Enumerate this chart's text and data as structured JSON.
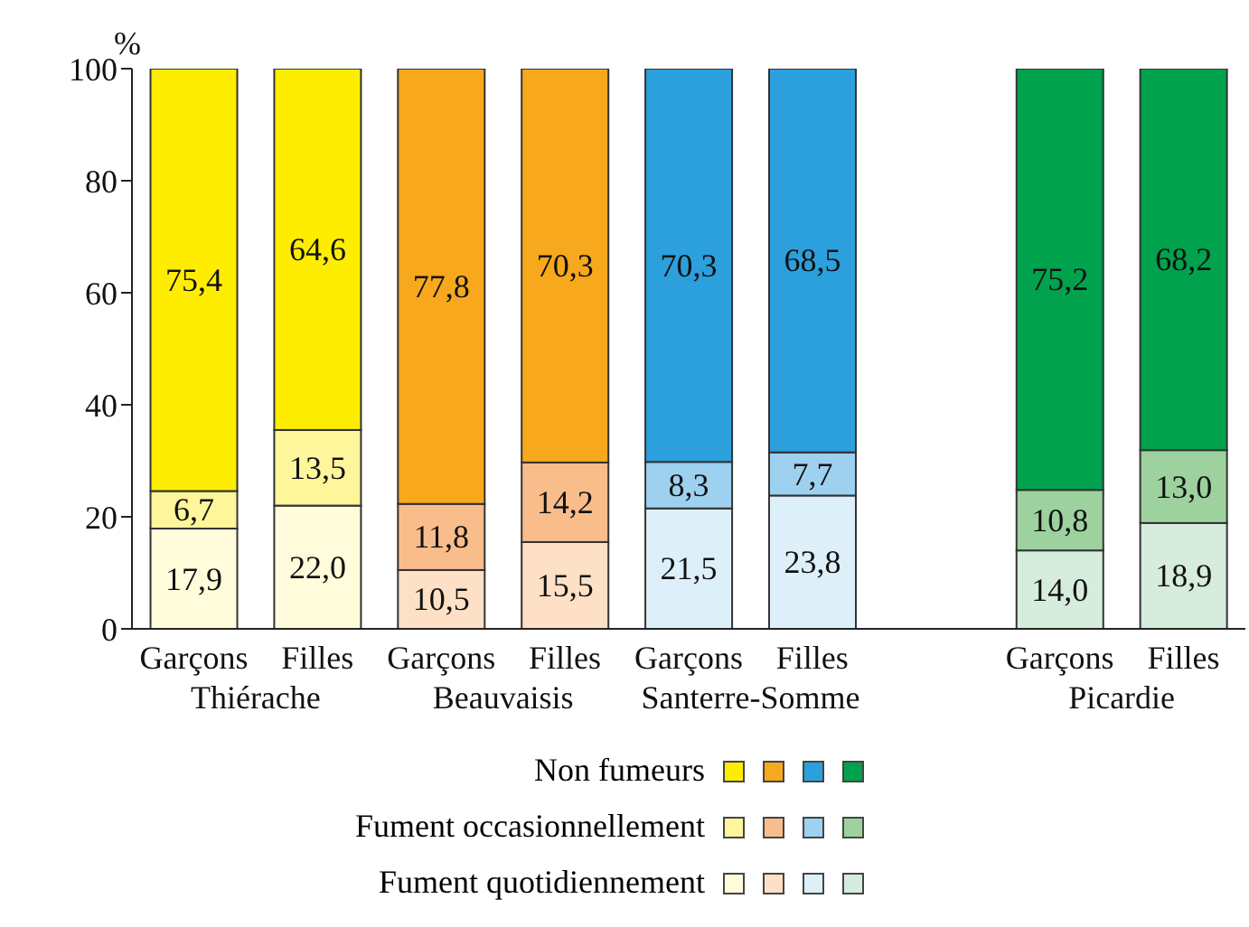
{
  "chart_data": {
    "type": "bar",
    "stacked": true,
    "ylabel": "%",
    "ylim": [
      0,
      100
    ],
    "yticks": [
      0,
      20,
      40,
      60,
      80,
      100
    ],
    "legend": "bottom",
    "categories": [
      "Garçons",
      "Filles",
      "Garçons",
      "Filles",
      "Garçons",
      "Filles",
      null,
      "Garçons",
      "Filles"
    ],
    "annotations": [
      "Thiérache",
      "Beauvaisis",
      "Santerre-Somme",
      "Picardie"
    ],
    "series": [
      {
        "name": "Fument quotidiennement",
        "values": [
          17.9,
          22.0,
          10.5,
          15.5,
          21.5,
          23.8,
          null,
          14.0,
          18.9
        ],
        "value_labels": [
          "17,9",
          "22,0",
          "10,5",
          "15,5",
          "21,5",
          "23,8",
          null,
          "14,0",
          "18,9"
        ],
        "colors": [
          "#fffbdb",
          "#fffbdb",
          "#fde0c5",
          "#fde0c5",
          "#ddf0fa",
          "#ddf0fa",
          null,
          "#d6ecdd",
          "#d6ecdd"
        ]
      },
      {
        "name": "Fument occasionnellement",
        "values": [
          6.7,
          13.5,
          11.8,
          14.2,
          8.3,
          7.7,
          null,
          10.8,
          13.0
        ],
        "value_labels": [
          "6,7",
          "13,5",
          "11,8",
          "14,2",
          "8,3",
          "7,7",
          null,
          "10,8",
          "13,0"
        ],
        "colors": [
          "#fff59b",
          "#fff59b",
          "#f9bd8c",
          "#f9bd8c",
          "#9ed1f0",
          "#9ed1f0",
          null,
          "#9dd29f",
          "#9dd29f"
        ]
      },
      {
        "name": "Non fumeurs",
        "values": [
          75.4,
          64.6,
          77.8,
          70.3,
          70.3,
          68.5,
          null,
          75.2,
          68.2
        ],
        "value_labels": [
          "75,4",
          "64,6",
          "77,8",
          "70,3",
          "70,3",
          "68,5",
          null,
          "75,2",
          "68,2"
        ],
        "colors": [
          "#ffed00",
          "#ffed00",
          "#f8a81c",
          "#f8a81c",
          "#2c9fdd",
          "#2c9fdd",
          null,
          "#00a24d",
          "#00a24d"
        ]
      }
    ]
  }
}
